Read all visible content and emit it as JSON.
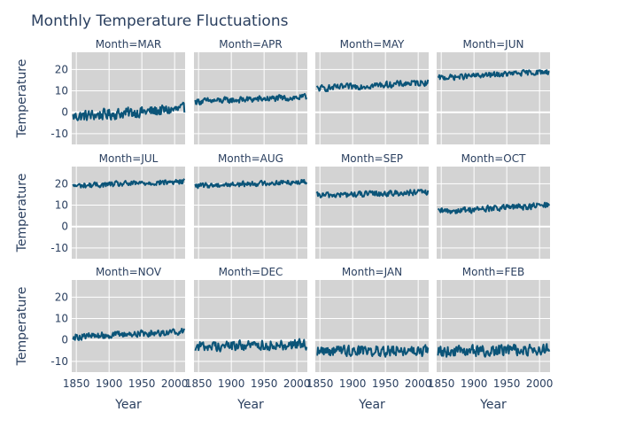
{
  "chart_data": {
    "type": "line",
    "title": "Monthly Temperature Fluctuations",
    "xlabel": "Year",
    "ylabel": "Temperature",
    "xlim": [
      1843,
      2016
    ],
    "ylim": [
      -15,
      28
    ],
    "x_ticks": [
      1850,
      1900,
      1950,
      2000
    ],
    "y_ticks": [
      -10,
      0,
      10,
      20
    ],
    "facet_prefix": "Month=",
    "line_color": "#0b5478",
    "plot_bg": "#d3d3d3",
    "grid": true,
    "panels": [
      {
        "month": "MAR",
        "start": -2.0,
        "end": 1.5,
        "noise": 2.8
      },
      {
        "month": "APR",
        "start": 5.0,
        "end": 7.0,
        "noise": 1.6
      },
      {
        "month": "MAY",
        "start": 11.0,
        "end": 14.0,
        "noise": 1.6
      },
      {
        "month": "JUN",
        "start": 16.0,
        "end": 19.0,
        "noise": 1.4
      },
      {
        "month": "JUL",
        "start": 19.0,
        "end": 21.0,
        "noise": 1.4
      },
      {
        "month": "AUG",
        "start": 19.0,
        "end": 21.0,
        "noise": 1.3
      },
      {
        "month": "SEP",
        "start": 14.5,
        "end": 16.0,
        "noise": 1.5
      },
      {
        "month": "OCT",
        "start": 7.0,
        "end": 10.0,
        "noise": 1.6
      },
      {
        "month": "NOV",
        "start": 1.5,
        "end": 4.0,
        "noise": 1.7
      },
      {
        "month": "DEC",
        "start": -3.0,
        "end": -2.0,
        "noise": 2.6
      },
      {
        "month": "JAN",
        "start": -5.0,
        "end": -5.0,
        "noise": 2.8
      },
      {
        "month": "FEB",
        "start": -5.5,
        "end": -4.5,
        "noise": 2.8
      }
    ]
  }
}
